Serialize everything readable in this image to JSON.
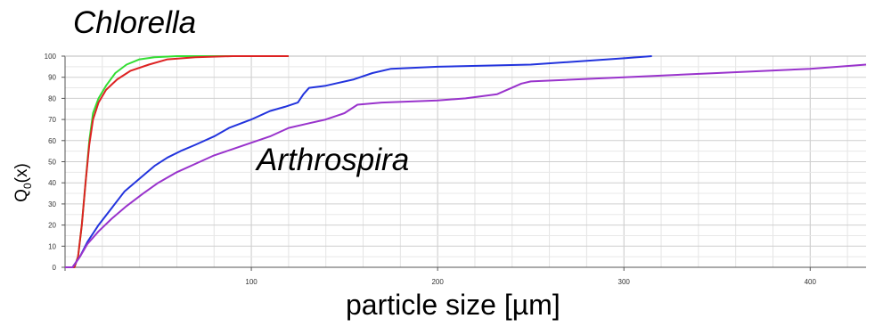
{
  "chart_data": {
    "type": "line",
    "title": "Chlorella",
    "annotation": "Arthrospira",
    "xlabel": "particle size [µm]",
    "ylabel": {
      "main": "Q",
      "sub": "0",
      "suffix": "(x)"
    },
    "xlim": [
      0,
      430
    ],
    "ylim": [
      0,
      100
    ],
    "xticks": [
      100,
      200,
      300,
      400
    ],
    "yticks": [
      0,
      10,
      20,
      30,
      40,
      50,
      60,
      70,
      80,
      90,
      100
    ],
    "grid": true,
    "legend": "none",
    "series": [
      {
        "color": "#33dd33",
        "points": [
          [
            0,
            0
          ],
          [
            5,
            0
          ],
          [
            7,
            5
          ],
          [
            9,
            20
          ],
          [
            11,
            40
          ],
          [
            13,
            60
          ],
          [
            15,
            73
          ],
          [
            18,
            80
          ],
          [
            22,
            86
          ],
          [
            27,
            92
          ],
          [
            33,
            96
          ],
          [
            40,
            98.5
          ],
          [
            48,
            99.5
          ],
          [
            60,
            100
          ],
          [
            120,
            100
          ]
        ]
      },
      {
        "color": "#dd2222",
        "points": [
          [
            0,
            0
          ],
          [
            5,
            0
          ],
          [
            7,
            5
          ],
          [
            9,
            20
          ],
          [
            11,
            40
          ],
          [
            13,
            58
          ],
          [
            15,
            70
          ],
          [
            18,
            78
          ],
          [
            22,
            84
          ],
          [
            28,
            89
          ],
          [
            35,
            93
          ],
          [
            45,
            96
          ],
          [
            55,
            98.5
          ],
          [
            70,
            99.5
          ],
          [
            90,
            100
          ],
          [
            120,
            100
          ]
        ]
      },
      {
        "color": "#2233dd",
        "points": [
          [
            0,
            0
          ],
          [
            4,
            0
          ],
          [
            8,
            5
          ],
          [
            12,
            12
          ],
          [
            18,
            20
          ],
          [
            25,
            28
          ],
          [
            32,
            36
          ],
          [
            40,
            42
          ],
          [
            48,
            48
          ],
          [
            55,
            52
          ],
          [
            62,
            55
          ],
          [
            70,
            58
          ],
          [
            80,
            62
          ],
          [
            88,
            66
          ],
          [
            100,
            70
          ],
          [
            110,
            74
          ],
          [
            118,
            76
          ],
          [
            125,
            78
          ],
          [
            128,
            82
          ],
          [
            131,
            85
          ],
          [
            140,
            86
          ],
          [
            155,
            89
          ],
          [
            165,
            92
          ],
          [
            175,
            94
          ],
          [
            200,
            95
          ],
          [
            250,
            96
          ],
          [
            300,
            99
          ],
          [
            315,
            100
          ]
        ]
      },
      {
        "color": "#9933cc",
        "points": [
          [
            0,
            0
          ],
          [
            4,
            0
          ],
          [
            8,
            5
          ],
          [
            12,
            11
          ],
          [
            18,
            17
          ],
          [
            25,
            23
          ],
          [
            33,
            29
          ],
          [
            42,
            35
          ],
          [
            50,
            40
          ],
          [
            60,
            45
          ],
          [
            70,
            49
          ],
          [
            80,
            53
          ],
          [
            90,
            56
          ],
          [
            100,
            59
          ],
          [
            110,
            62
          ],
          [
            120,
            66
          ],
          [
            130,
            68
          ],
          [
            140,
            70
          ],
          [
            150,
            73
          ],
          [
            157,
            77
          ],
          [
            170,
            78
          ],
          [
            200,
            79
          ],
          [
            215,
            80
          ],
          [
            232,
            82
          ],
          [
            245,
            87
          ],
          [
            250,
            88
          ],
          [
            300,
            90
          ],
          [
            350,
            92
          ],
          [
            400,
            94
          ],
          [
            430,
            96
          ]
        ]
      }
    ]
  }
}
